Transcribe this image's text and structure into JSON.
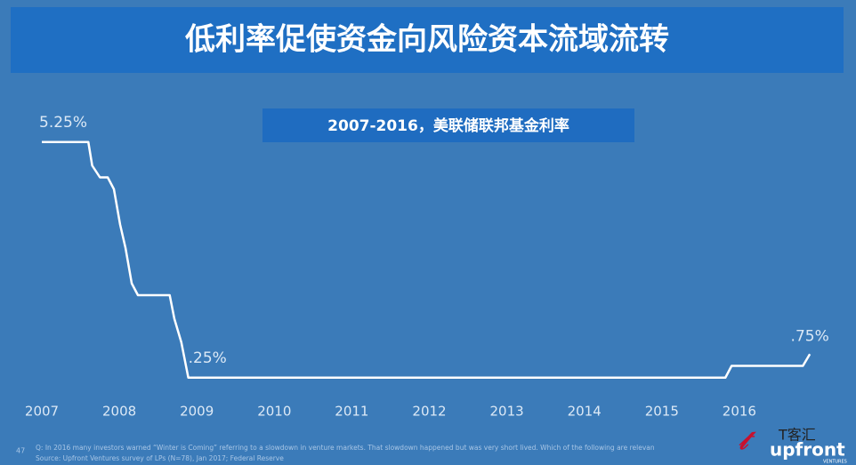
{
  "chart_data": {
    "type": "line",
    "title": "低利率促使资金向风险资本流域流转",
    "subtitle": "2007-2016，美联储联邦基金利率",
    "x": [
      2007,
      2007.6,
      2007.65,
      2007.75,
      2007.85,
      2007.93,
      2008.01,
      2008.08,
      2008.16,
      2008.24,
      2008.65,
      2008.71,
      2008.8,
      2008.89,
      2015.82,
      2015.9,
      2016.82,
      2016.91
    ],
    "series": [
      {
        "color": "#ffffff",
        "values": [
          5.25,
          5.25,
          4.75,
          4.5,
          4.5,
          4.25,
          3.5,
          3.0,
          2.25,
          2.0,
          2.0,
          1.5,
          1.0,
          0.25,
          0.25,
          0.5,
          0.5,
          0.75
        ]
      }
    ],
    "annotations": [
      "5.25%",
      ".25%",
      ".75%"
    ],
    "xlim": [
      2007,
      2017
    ],
    "xticks": [
      2007,
      2008,
      2009,
      2010,
      2011,
      2012,
      2013,
      2014,
      2015,
      2016
    ],
    "ylim": [
      0,
      6
    ],
    "grid": false
  },
  "footer": {
    "page": "47",
    "question": "Q: In 2016 many investors warned “Winter is Coming” referring to a slowdown in venture markets. That slowdown happened but was very short lived. Which of the following are relevan",
    "source": "Source: Upfront Ventures survey of LPs (N=78), Jan 2017; Federal Reserve",
    "logo": "upfront",
    "logo_sub": "VENTURES",
    "watermark": "T客汇"
  }
}
